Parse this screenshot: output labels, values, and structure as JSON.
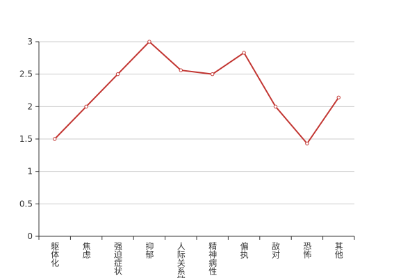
{
  "chart_data": {
    "type": "line",
    "categories": [
      "躯体化",
      "焦虑",
      "强迫症状",
      "抑郁",
      "人际关系敏感",
      "精神病性",
      "偏执",
      "敌对",
      "恐怖",
      "其他"
    ],
    "series": [
      {
        "color": "#c23531",
        "values": [
          1.5,
          2,
          2.5,
          3,
          2.56,
          2.5,
          2.83,
          2,
          1.43,
          2.14
        ]
      }
    ],
    "ylim": [
      0,
      3
    ],
    "yticks": [
      0,
      0.5,
      1,
      1.5,
      2,
      2.5,
      3
    ],
    "grid": true
  }
}
